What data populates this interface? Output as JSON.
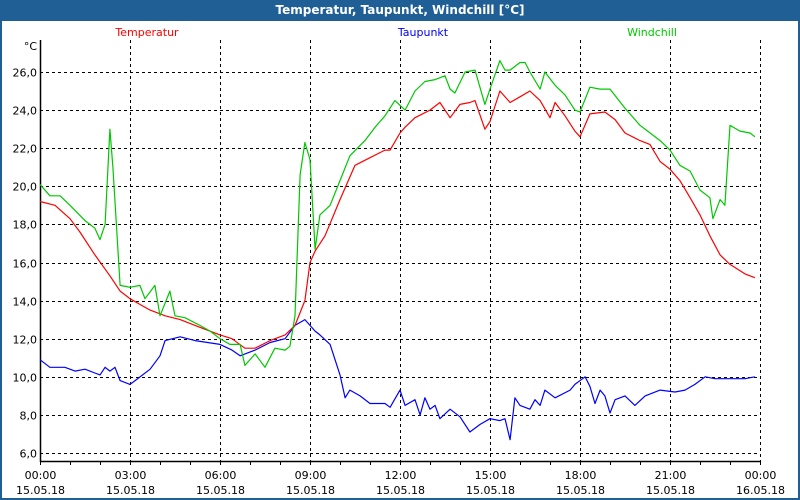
{
  "window": {
    "title": "Temperatur, Taupunkt, Windchill [°C]"
  },
  "chart_data": {
    "type": "line",
    "title": "Temperatur, Taupunkt, Windchill [°C]",
    "ylabel": "°C",
    "xlabel": "",
    "ylim": [
      6,
      26
    ],
    "xlim_hours": [
      0,
      24
    ],
    "grid": true,
    "legend_placement": "top",
    "y_ticks": [
      "26,0",
      "24,0",
      "22,0",
      "20,0",
      "18,0",
      "16,0",
      "14,0",
      "12,0",
      "10,0",
      "8,0",
      "6,0"
    ],
    "x_ticks": [
      {
        "time": "00:00",
        "date": "15.05.18"
      },
      {
        "time": "03:00",
        "date": "15.05.18"
      },
      {
        "time": "06:00",
        "date": "15.05.18"
      },
      {
        "time": "09:00",
        "date": "15.05.18"
      },
      {
        "time": "12:00",
        "date": "15.05.18"
      },
      {
        "time": "15:00",
        "date": "15.05.18"
      },
      {
        "time": "18:00",
        "date": "15.05.18"
      },
      {
        "time": "21:00",
        "date": "15.05.18"
      },
      {
        "time": "00:00",
        "date": "16.05.18"
      }
    ],
    "series": [
      {
        "name": "Temperatur",
        "color": "#ff0000",
        "points": [
          [
            0,
            19.2
          ],
          [
            0.5,
            19.0
          ],
          [
            1.0,
            18.3
          ],
          [
            1.33,
            17.6
          ],
          [
            1.83,
            16.4
          ],
          [
            2.33,
            15.3
          ],
          [
            2.67,
            14.5
          ],
          [
            3.0,
            14.1
          ],
          [
            3.33,
            13.8
          ],
          [
            3.67,
            13.5
          ],
          [
            4.17,
            13.2
          ],
          [
            4.67,
            13.0
          ],
          [
            5.33,
            12.6
          ],
          [
            6.0,
            12.2
          ],
          [
            6.4,
            12.0
          ],
          [
            6.83,
            11.5
          ],
          [
            7.17,
            11.5
          ],
          [
            7.67,
            11.9
          ],
          [
            8.17,
            12.2
          ],
          [
            8.5,
            12.7
          ],
          [
            8.83,
            14.0
          ],
          [
            9.0,
            16.0
          ],
          [
            9.17,
            16.6
          ],
          [
            9.5,
            17.4
          ],
          [
            10.0,
            19.3
          ],
          [
            10.5,
            21.1
          ],
          [
            11.0,
            21.5
          ],
          [
            11.5,
            21.9
          ],
          [
            11.67,
            21.9
          ],
          [
            12.0,
            22.8
          ],
          [
            12.17,
            23.1
          ],
          [
            12.5,
            23.6
          ],
          [
            13.0,
            24.0
          ],
          [
            13.33,
            24.4
          ],
          [
            13.67,
            23.6
          ],
          [
            14.0,
            24.3
          ],
          [
            14.33,
            24.4
          ],
          [
            14.5,
            24.5
          ],
          [
            14.83,
            23.0
          ],
          [
            15.0,
            23.4
          ],
          [
            15.33,
            25.0
          ],
          [
            15.67,
            24.4
          ],
          [
            16.0,
            24.7
          ],
          [
            16.33,
            25.0
          ],
          [
            16.67,
            24.5
          ],
          [
            17.0,
            23.6
          ],
          [
            17.17,
            24.4
          ],
          [
            17.5,
            23.7
          ],
          [
            17.83,
            22.9
          ],
          [
            18.0,
            22.6
          ],
          [
            18.33,
            23.8
          ],
          [
            18.83,
            23.9
          ],
          [
            19.17,
            23.5
          ],
          [
            19.5,
            22.8
          ],
          [
            20.0,
            22.4
          ],
          [
            20.33,
            22.2
          ],
          [
            20.67,
            21.3
          ],
          [
            21.0,
            20.9
          ],
          [
            21.33,
            20.3
          ],
          [
            21.67,
            19.4
          ],
          [
            22.0,
            18.5
          ],
          [
            22.33,
            17.4
          ],
          [
            22.67,
            16.4
          ],
          [
            23.0,
            15.9
          ],
          [
            23.5,
            15.4
          ],
          [
            23.83,
            15.2
          ]
        ]
      },
      {
        "name": "Taupunkt",
        "color": "#0000ff",
        "points": [
          [
            0,
            10.9
          ],
          [
            0.33,
            10.5
          ],
          [
            0.83,
            10.5
          ],
          [
            1.17,
            10.3
          ],
          [
            1.5,
            10.4
          ],
          [
            1.83,
            10.2
          ],
          [
            2.0,
            10.1
          ],
          [
            2.17,
            10.5
          ],
          [
            2.33,
            10.3
          ],
          [
            2.5,
            10.5
          ],
          [
            2.67,
            9.8
          ],
          [
            3.0,
            9.6
          ],
          [
            3.17,
            9.8
          ],
          [
            3.67,
            10.4
          ],
          [
            4.0,
            11.1
          ],
          [
            4.17,
            11.9
          ],
          [
            4.67,
            12.1
          ],
          [
            5.17,
            11.9
          ],
          [
            6.0,
            11.7
          ],
          [
            6.4,
            11.4
          ],
          [
            6.67,
            11.1
          ],
          [
            7.17,
            11.4
          ],
          [
            7.67,
            11.8
          ],
          [
            8.17,
            12.0
          ],
          [
            8.5,
            12.7
          ],
          [
            8.83,
            13.0
          ],
          [
            9.17,
            12.4
          ],
          [
            9.33,
            12.2
          ],
          [
            9.67,
            11.7
          ],
          [
            10.0,
            10.1
          ],
          [
            10.17,
            8.9
          ],
          [
            10.33,
            9.3
          ],
          [
            10.67,
            9.0
          ],
          [
            11.0,
            8.6
          ],
          [
            11.5,
            8.6
          ],
          [
            11.67,
            8.4
          ],
          [
            12.0,
            9.3
          ],
          [
            12.17,
            8.5
          ],
          [
            12.5,
            8.8
          ],
          [
            12.67,
            8.0
          ],
          [
            12.83,
            8.9
          ],
          [
            13.0,
            8.3
          ],
          [
            13.17,
            8.5
          ],
          [
            13.33,
            7.8
          ],
          [
            13.67,
            8.3
          ],
          [
            14.0,
            7.9
          ],
          [
            14.33,
            7.1
          ],
          [
            14.67,
            7.5
          ],
          [
            15.0,
            7.8
          ],
          [
            15.33,
            7.7
          ],
          [
            15.5,
            7.8
          ],
          [
            15.67,
            6.7
          ],
          [
            15.83,
            8.9
          ],
          [
            16.0,
            8.5
          ],
          [
            16.33,
            8.3
          ],
          [
            16.5,
            8.8
          ],
          [
            16.67,
            8.5
          ],
          [
            16.83,
            9.3
          ],
          [
            17.17,
            8.9
          ],
          [
            17.67,
            9.3
          ],
          [
            17.83,
            9.6
          ],
          [
            18.17,
            10.0
          ],
          [
            18.33,
            9.5
          ],
          [
            18.5,
            8.6
          ],
          [
            18.67,
            9.3
          ],
          [
            18.83,
            9.0
          ],
          [
            19.0,
            8.1
          ],
          [
            19.17,
            8.8
          ],
          [
            19.5,
            9.0
          ],
          [
            19.83,
            8.5
          ],
          [
            20.17,
            9.0
          ],
          [
            20.67,
            9.3
          ],
          [
            21.17,
            9.2
          ],
          [
            21.5,
            9.3
          ],
          [
            21.83,
            9.6
          ],
          [
            22.17,
            10.0
          ],
          [
            22.5,
            9.9
          ],
          [
            23.0,
            9.9
          ],
          [
            23.5,
            9.9
          ],
          [
            23.83,
            10.0
          ]
        ]
      },
      {
        "name": "Windchill",
        "color": "#00c800",
        "points": [
          [
            0,
            20.1
          ],
          [
            0.33,
            19.5
          ],
          [
            0.67,
            19.5
          ],
          [
            1.0,
            19.0
          ],
          [
            1.5,
            18.2
          ],
          [
            1.83,
            17.8
          ],
          [
            2.0,
            17.2
          ],
          [
            2.17,
            18.0
          ],
          [
            2.33,
            23.0
          ],
          [
            2.43,
            21.0
          ],
          [
            2.67,
            14.8
          ],
          [
            3.0,
            14.7
          ],
          [
            3.33,
            14.8
          ],
          [
            3.5,
            14.1
          ],
          [
            3.83,
            14.8
          ],
          [
            4.0,
            13.2
          ],
          [
            4.33,
            14.5
          ],
          [
            4.5,
            13.2
          ],
          [
            4.83,
            13.1
          ],
          [
            5.33,
            12.7
          ],
          [
            5.67,
            12.4
          ],
          [
            6.0,
            12.0
          ],
          [
            6.33,
            11.7
          ],
          [
            6.67,
            11.7
          ],
          [
            6.83,
            10.6
          ],
          [
            7.17,
            11.2
          ],
          [
            7.5,
            10.5
          ],
          [
            7.83,
            11.5
          ],
          [
            8.17,
            11.4
          ],
          [
            8.33,
            11.6
          ],
          [
            8.5,
            13.2
          ],
          [
            8.67,
            20.6
          ],
          [
            8.83,
            22.3
          ],
          [
            9.0,
            21.4
          ],
          [
            9.17,
            16.7
          ],
          [
            9.33,
            18.5
          ],
          [
            9.67,
            19.0
          ],
          [
            10.0,
            20.3
          ],
          [
            10.33,
            21.6
          ],
          [
            10.83,
            22.4
          ],
          [
            11.17,
            23.1
          ],
          [
            11.5,
            23.7
          ],
          [
            11.83,
            24.5
          ],
          [
            12.17,
            24.0
          ],
          [
            12.5,
            25.0
          ],
          [
            12.83,
            25.5
          ],
          [
            13.17,
            25.6
          ],
          [
            13.5,
            25.8
          ],
          [
            13.67,
            25.1
          ],
          [
            13.83,
            24.9
          ],
          [
            14.17,
            26.0
          ],
          [
            14.5,
            26.1
          ],
          [
            14.83,
            24.3
          ],
          [
            15.0,
            25.1
          ],
          [
            15.33,
            26.6
          ],
          [
            15.5,
            26.1
          ],
          [
            15.67,
            26.1
          ],
          [
            16.0,
            26.5
          ],
          [
            16.17,
            26.5
          ],
          [
            16.33,
            26.0
          ],
          [
            16.67,
            25.1
          ],
          [
            16.83,
            26.0
          ],
          [
            17.17,
            25.3
          ],
          [
            17.5,
            24.8
          ],
          [
            17.83,
            24.0
          ],
          [
            18.0,
            23.9
          ],
          [
            18.33,
            25.2
          ],
          [
            18.67,
            25.1
          ],
          [
            19.0,
            25.1
          ],
          [
            19.5,
            24.1
          ],
          [
            20.0,
            23.2
          ],
          [
            20.67,
            22.4
          ],
          [
            21.0,
            21.9
          ],
          [
            21.33,
            21.1
          ],
          [
            21.67,
            20.8
          ],
          [
            22.0,
            19.8
          ],
          [
            22.33,
            19.4
          ],
          [
            22.43,
            18.3
          ],
          [
            22.67,
            19.3
          ],
          [
            22.83,
            19.0
          ],
          [
            23.0,
            23.2
          ],
          [
            23.33,
            22.9
          ],
          [
            23.67,
            22.8
          ],
          [
            23.83,
            22.6
          ]
        ]
      }
    ]
  }
}
